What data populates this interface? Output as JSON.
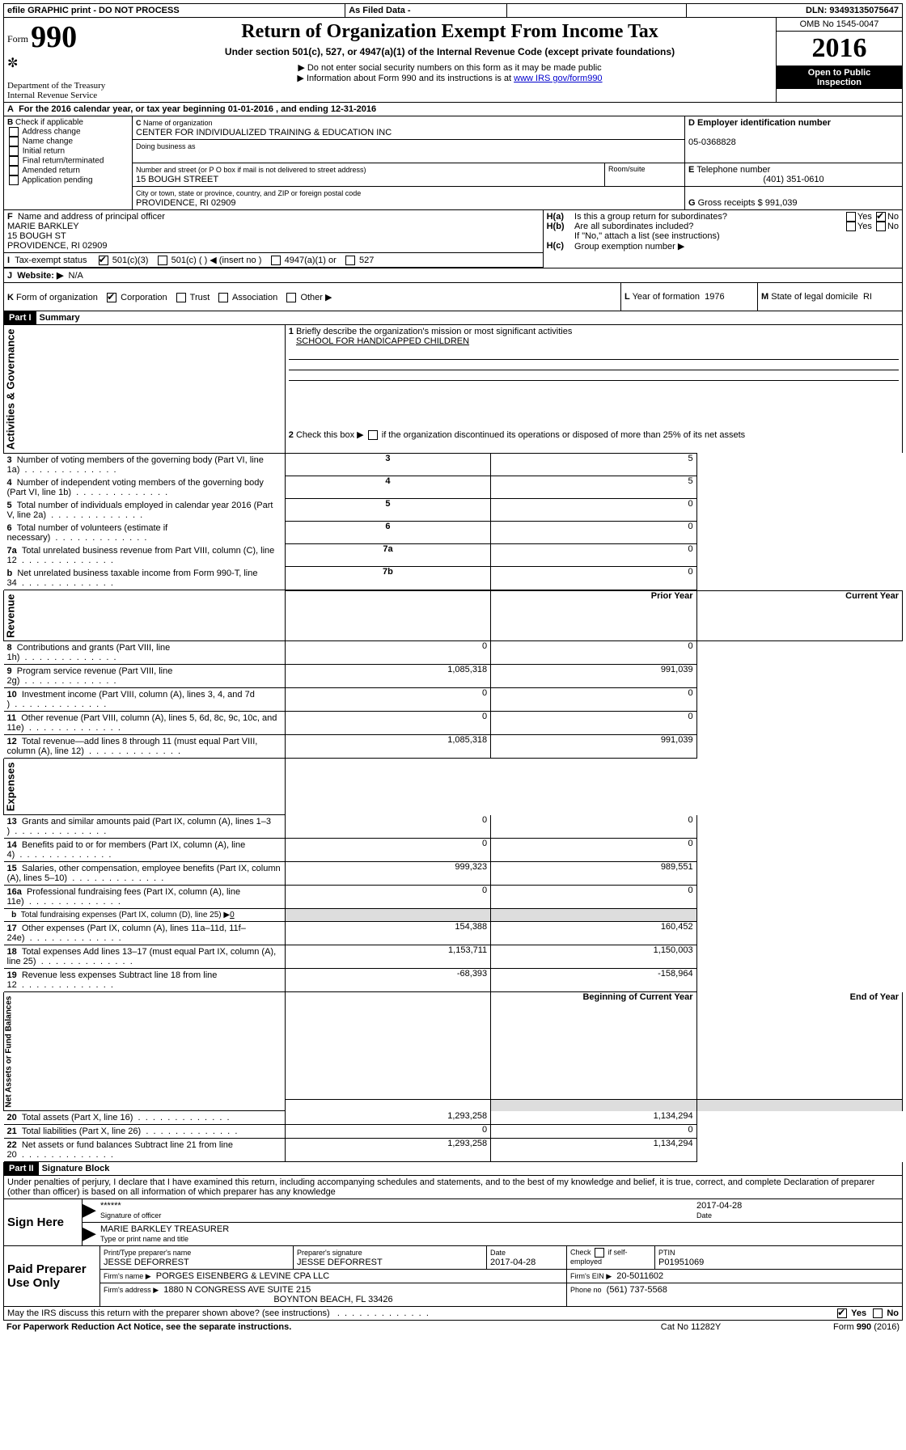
{
  "top_bar": {
    "efile": "efile GRAPHIC print - DO NOT PROCESS",
    "asfiled": "As Filed Data -",
    "dln_label": "DLN:",
    "dln": "93493135075647"
  },
  "header": {
    "form_prefix": "Form",
    "form_no": "990",
    "dept1": "Department of the Treasury",
    "dept2": "Internal Revenue Service",
    "title": "Return of Organization Exempt From Income Tax",
    "sub1": "Under section 501(c), 527, or 4947(a)(1) of the Internal Revenue Code (except private foundations)",
    "sub2a": "▶ Do not enter social security numbers on this form as it may be made public",
    "sub2b": "▶ Information about Form 990 and its instructions is at ",
    "link": "www IRS gov/form990",
    "omb": "OMB No 1545-0047",
    "year": "2016",
    "open1": "Open to Public",
    "open2": "Inspection"
  },
  "lineA": {
    "A": "A",
    "text1": "For the 2016 calendar year, or tax year beginning ",
    "date1": "01-01-2016",
    "text2": "  , and ending ",
    "date2": "12-31-2016"
  },
  "B": {
    "label": "B",
    "caption": "Check if applicable",
    "items": [
      "Address change",
      "Name change",
      "Initial return",
      "Final return/terminated",
      "Amended return",
      "Application pending"
    ]
  },
  "C": {
    "label": "C",
    "name_label": "Name of organization",
    "name": "CENTER FOR INDIVIDUALIZED TRAINING & EDUCATION INC",
    "dba_label": "Doing business as",
    "dba": "",
    "street_label": "Number and street (or P O  box if mail is not delivered to street address)",
    "room_label": "Room/suite",
    "street": "15 BOUGH STREET",
    "city_label": "City or town, state or province, country, and ZIP or foreign postal code",
    "city": "PROVIDENCE, RI  02909"
  },
  "D": {
    "label": "D",
    "caption": "Employer identification number",
    "val": "05-0368828"
  },
  "E": {
    "label": "E",
    "caption": "Telephone number",
    "val": "(401) 351-0610"
  },
  "G": {
    "label": "G",
    "caption": "Gross receipts $",
    "val": "991,039"
  },
  "F": {
    "label": "F",
    "caption": "Name and address of principal officer",
    "line1": "MARIE BARKLEY",
    "line2": "15 BOUGH ST",
    "line3": "PROVIDENCE, RI  02909"
  },
  "H": {
    "a_label": "H(a)",
    "a_text": "Is this a group return for subordinates?",
    "a_yes": "Yes",
    "a_no": "No",
    "b_label": "H(b)",
    "b_text": "Are all subordinates included?",
    "b_note": "If \"No,\" attach a list  (see instructions)",
    "c_label": "H(c)",
    "c_text": "Group exemption number ▶"
  },
  "I": {
    "label": "I",
    "caption": "Tax-exempt status",
    "opt1": "501(c)(3)",
    "opt2": "501(c) (  ) ◀ (insert no )",
    "opt3": "4947(a)(1) or",
    "opt4": "527"
  },
  "J": {
    "label": "J",
    "caption": "Website: ▶",
    "val": "N/A"
  },
  "K": {
    "label": "K",
    "caption": "Form of organization",
    "opts": [
      "Corporation",
      "Trust",
      "Association",
      "Other ▶"
    ]
  },
  "L": {
    "label": "L",
    "caption": "Year of formation",
    "val": "1976"
  },
  "M": {
    "label": "M",
    "caption": "State of legal domicile",
    "val": "RI"
  },
  "part1": {
    "tag": "Part I",
    "title": "Summary",
    "q1_num": "1",
    "q1": "Briefly describe the organization's mission or most significant activities",
    "q1_ans": "SCHOOL FOR HANDICAPPED CHILDREN",
    "q2_num": "2",
    "q2": "Check this box ▶",
    "q2_after": " if the organization discontinued its operations or disposed of more than 25% of its net assets",
    "sections": {
      "activities": "Activities & Governance",
      "revenue": "Revenue",
      "expenses": "Expenses",
      "netassets": "Net Assets or Fund Balances"
    },
    "gov_rows": [
      {
        "n": "3",
        "t": "Number of voting members of the governing body (Part VI, line 1a)",
        "box": "3",
        "v": "5"
      },
      {
        "n": "4",
        "t": "Number of independent voting members of the governing body (Part VI, line 1b)",
        "box": "4",
        "v": "5"
      },
      {
        "n": "5",
        "t": "Total number of individuals employed in calendar year 2016 (Part V, line 2a)",
        "box": "5",
        "v": "0"
      },
      {
        "n": "6",
        "t": "Total number of volunteers (estimate if necessary)",
        "box": "6",
        "v": "0"
      },
      {
        "n": "7a",
        "t": "Total unrelated business revenue from Part VIII, column (C), line 12",
        "box": "7a",
        "v": "0"
      },
      {
        "n": "b",
        "t": "Net unrelated business taxable income from Form 990-T, line 34",
        "box": "7b",
        "v": "0"
      }
    ],
    "col_prior": "Prior Year",
    "col_current": "Current Year",
    "rev_rows": [
      {
        "n": "8",
        "t": "Contributions and grants (Part VIII, line 1h)",
        "p": "0",
        "c": "0"
      },
      {
        "n": "9",
        "t": "Program service revenue (Part VIII, line 2g)",
        "p": "1,085,318",
        "c": "991,039"
      },
      {
        "n": "10",
        "t": "Investment income (Part VIII, column (A), lines 3, 4, and 7d )",
        "p": "0",
        "c": "0"
      },
      {
        "n": "11",
        "t": "Other revenue (Part VIII, column (A), lines 5, 6d, 8c, 9c, 10c, and 11e)",
        "p": "0",
        "c": "0"
      },
      {
        "n": "12",
        "t": "Total revenue—add lines 8 through 11 (must equal Part VIII, column (A), line 12)",
        "p": "1,085,318",
        "c": "991,039"
      }
    ],
    "exp_rows": [
      {
        "n": "13",
        "t": "Grants and similar amounts paid (Part IX, column (A), lines 1–3 )",
        "p": "0",
        "c": "0"
      },
      {
        "n": "14",
        "t": "Benefits paid to or for members (Part IX, column (A), line 4)",
        "p": "0",
        "c": "0"
      },
      {
        "n": "15",
        "t": "Salaries, other compensation, employee benefits (Part IX, column (A), lines 5–10)",
        "p": "999,323",
        "c": "989,551"
      },
      {
        "n": "16a",
        "t": "Professional fundraising fees (Part IX, column (A), line 11e)",
        "p": "0",
        "c": "0"
      }
    ],
    "exp_b_n": "b",
    "exp_b_t": "Total fundraising expenses (Part IX, column (D), line 25) ▶",
    "exp_b_v": "0",
    "exp_rows2": [
      {
        "n": "17",
        "t": "Other expenses (Part IX, column (A), lines 11a–11d, 11f–24e)",
        "p": "154,388",
        "c": "160,452"
      },
      {
        "n": "18",
        "t": "Total expenses  Add lines 13–17 (must equal Part IX, column (A), line 25)",
        "p": "1,153,711",
        "c": "1,150,003"
      },
      {
        "n": "19",
        "t": "Revenue less expenses  Subtract line 18 from line 12",
        "p": "-68,393",
        "c": "-158,964"
      }
    ],
    "col_begin": "Beginning of Current Year",
    "col_end": "End of Year",
    "net_rows": [
      {
        "n": "20",
        "t": "Total assets (Part X, line 16)",
        "p": "1,293,258",
        "c": "1,134,294"
      },
      {
        "n": "21",
        "t": "Total liabilities (Part X, line 26)",
        "p": "0",
        "c": "0"
      },
      {
        "n": "22",
        "t": "Net assets or fund balances  Subtract line 21 from line 20",
        "p": "1,293,258",
        "c": "1,134,294"
      }
    ]
  },
  "part2": {
    "tag": "Part II",
    "title": "Signature Block",
    "perjury": "Under penalties of perjury, I declare that I have examined this return, including accompanying schedules and statements, and to the best of my knowledge and belief, it is true, correct, and complete  Declaration of preparer (other than officer) is based on all information of which preparer has any knowledge",
    "sign_here": "Sign Here",
    "stars": "******",
    "sig_officer_label": "Signature of officer",
    "date_label": "Date",
    "sig_date": "2017-04-28",
    "officer_name": "MARIE BARKLEY TREASURER",
    "type_label": "Type or print name and title",
    "paid": "Paid Preparer Use Only",
    "prep_name_label": "Print/Type preparer's name",
    "prep_name": "JESSE DEFORREST",
    "prep_sig_label": "Preparer's signature",
    "prep_sig": "JESSE DEFORREST",
    "prep_date_label": "Date",
    "prep_date": "2017-04-28",
    "check_if": "Check",
    "check_if2": "if self-employed",
    "ptin_label": "PTIN",
    "ptin": "P01951069",
    "firm_name_label": "Firm's name    ▶",
    "firm_name": "PORGES EISENBERG & LEVINE CPA LLC",
    "firm_ein_label": "Firm's EIN ▶",
    "firm_ein": "20-5011602",
    "firm_addr_label": "Firm's address ▶",
    "firm_addr1": "1880 N CONGRESS AVE SUITE 215",
    "firm_addr2": "BOYNTON BEACH, FL  33426",
    "phone_label": "Phone no",
    "phone": "(561) 737-5568",
    "discuss": "May the IRS discuss this return with the preparer shown above? (see instructions)",
    "yes": "Yes",
    "no": "No",
    "paperwork": "For Paperwork Reduction Act Notice, see the separate instructions.",
    "cat": "Cat  No  11282Y",
    "formfoot": "Form 990 (2016)",
    "formfootb": "990"
  }
}
